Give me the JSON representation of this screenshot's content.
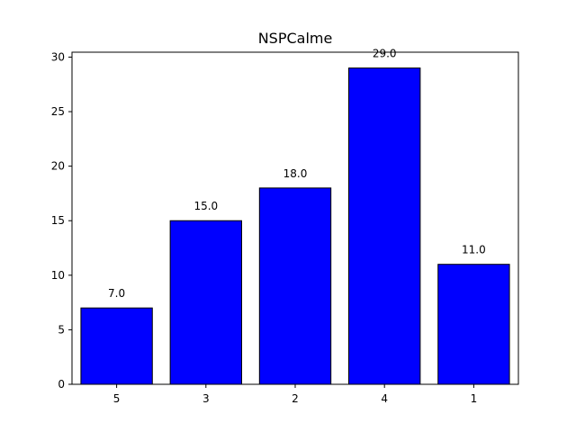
{
  "chart_data": {
    "type": "bar",
    "title": "NSPCalme",
    "xlabel": "",
    "ylabel": "",
    "categories": [
      "5",
      "3",
      "2",
      "4",
      "1"
    ],
    "values": [
      7.0,
      15.0,
      18.0,
      29.0,
      11.0
    ],
    "data_labels": [
      "7.0",
      "15.0",
      "18.0",
      "29.0",
      "11.0"
    ],
    "ylim": [
      0,
      30.45
    ],
    "yticks": [
      0,
      5,
      10,
      15,
      20,
      25,
      30
    ],
    "ytick_labels": [
      "0",
      "5",
      "10",
      "15",
      "20",
      "25",
      "30"
    ],
    "grid": false,
    "legend": "none",
    "colors": {
      "bar_fill": "#0000ff",
      "bar_edge": "#000000",
      "axis": "#000000"
    }
  }
}
